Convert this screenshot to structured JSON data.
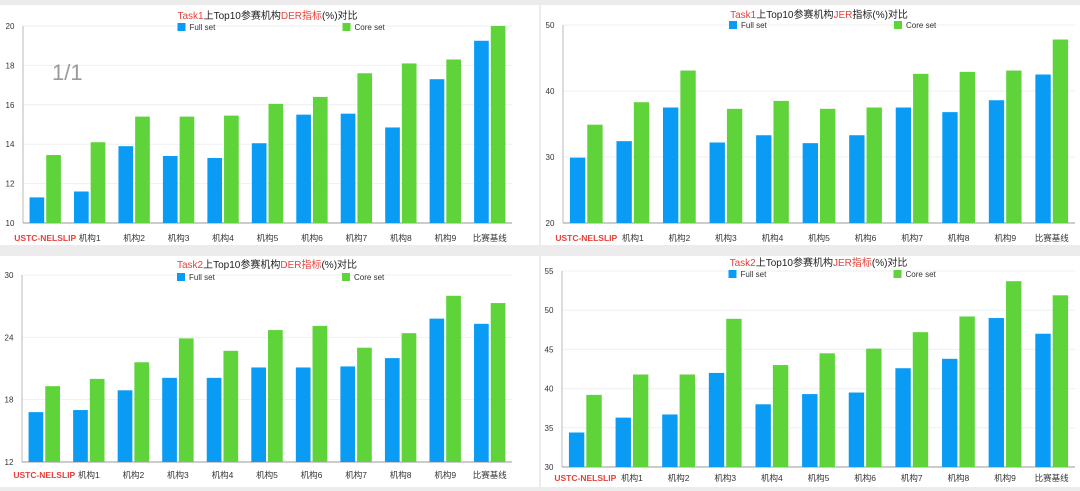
{
  "page_indicator": "1/1",
  "colors": {
    "full": "#0a9cf5",
    "core": "#5ed33a",
    "highlight": "#e8403a",
    "text": "#222222"
  },
  "chart_data": [
    {
      "type": "bar",
      "title_parts": [
        {
          "text": "Task1",
          "red": true
        },
        {
          "text": "上Top10参赛机构",
          "red": false
        },
        {
          "text": "DER指标",
          "red": true
        },
        {
          "text": "(%)对比",
          "red": false
        }
      ],
      "categories": [
        "USTC-NELSLIP",
        "机构1",
        "机构2",
        "机构3",
        "机构4",
        "机构5",
        "机构6",
        "机构7",
        "机构8",
        "机构9",
        "比赛基线"
      ],
      "highlight_category": "USTC-NELSLIP",
      "ylim": [
        10,
        20
      ],
      "yticks": [
        10,
        12,
        14,
        16,
        18,
        20
      ],
      "legend": "top-center",
      "grid": true,
      "series": [
        {
          "name": "Full set",
          "values": [
            11.3,
            11.6,
            13.9,
            13.4,
            13.3,
            14.05,
            15.5,
            15.55,
            14.85,
            17.3,
            19.25
          ]
        },
        {
          "name": "Core set",
          "values": [
            13.45,
            14.1,
            15.4,
            15.4,
            15.45,
            16.05,
            16.4,
            17.6,
            18.1,
            18.3,
            20.0
          ]
        }
      ]
    },
    {
      "type": "bar",
      "title_parts": [
        {
          "text": "Task1",
          "red": true
        },
        {
          "text": "上Top10参赛机构",
          "red": false
        },
        {
          "text": "JER",
          "red": true
        },
        {
          "text": "指标(%)对比",
          "red": false
        }
      ],
      "categories": [
        "USTC-NELSLIP",
        "机构1",
        "机构2",
        "机构3",
        "机构4",
        "机构5",
        "机构6",
        "机构7",
        "机构8",
        "机构9",
        "比赛基线"
      ],
      "highlight_category": "USTC-NELSLIP",
      "ylim": [
        20,
        50
      ],
      "yticks": [
        20,
        30,
        40,
        50
      ],
      "legend": "top-center",
      "grid": true,
      "series": [
        {
          "name": "Full set",
          "values": [
            29.9,
            32.4,
            37.5,
            32.2,
            33.3,
            32.1,
            33.3,
            37.5,
            36.8,
            38.6,
            42.5
          ]
        },
        {
          "name": "Core set",
          "values": [
            34.9,
            38.3,
            43.1,
            37.3,
            38.5,
            37.3,
            37.5,
            42.6,
            42.9,
            43.1,
            47.8
          ]
        }
      ]
    },
    {
      "type": "bar",
      "title_parts": [
        {
          "text": "Task2",
          "red": true
        },
        {
          "text": "上Top10参赛机构",
          "red": false
        },
        {
          "text": "DER指标",
          "red": true
        },
        {
          "text": "(%)对比",
          "red": false
        }
      ],
      "categories": [
        "USTC-NELSLIP",
        "机构1",
        "机构2",
        "机构3",
        "机构4",
        "机构5",
        "机构6",
        "机构7",
        "机构8",
        "机构9",
        "比赛基线"
      ],
      "highlight_category": "USTC-NELSLIP",
      "ylim": [
        12,
        30
      ],
      "yticks": [
        12,
        18,
        24,
        30
      ],
      "legend": "top-center",
      "grid": true,
      "series": [
        {
          "name": "Full set",
          "values": [
            16.8,
            17.0,
            18.9,
            20.1,
            20.1,
            21.1,
            21.1,
            21.2,
            22.0,
            25.8,
            25.3
          ]
        },
        {
          "name": "Core set",
          "values": [
            19.3,
            20.0,
            21.6,
            23.9,
            22.7,
            24.7,
            25.1,
            23.0,
            24.4,
            28.0,
            27.3
          ]
        }
      ]
    },
    {
      "type": "bar",
      "title_parts": [
        {
          "text": "Task2",
          "red": true
        },
        {
          "text": "上Top10参赛机构",
          "red": false
        },
        {
          "text": "JER指标",
          "red": true
        },
        {
          "text": "(%)对比",
          "red": false
        }
      ],
      "categories": [
        "USTC-NELSLIP",
        "机构1",
        "机构2",
        "机构3",
        "机构4",
        "机构5",
        "机构6",
        "机构7",
        "机构8",
        "机构9",
        "比赛基线"
      ],
      "highlight_category": "USTC-NELSLIP",
      "ylim": [
        30,
        55
      ],
      "yticks": [
        30,
        35,
        40,
        45,
        50,
        55
      ],
      "legend": "top-center",
      "grid": true,
      "series": [
        {
          "name": "Full set",
          "values": [
            34.4,
            36.3,
            36.7,
            42.0,
            38.0,
            39.3,
            39.5,
            42.6,
            43.8,
            49.0,
            47.0
          ]
        },
        {
          "name": "Core set",
          "values": [
            39.2,
            41.8,
            41.8,
            48.9,
            43.0,
            44.5,
            45.1,
            47.2,
            49.2,
            53.7,
            51.9
          ]
        }
      ]
    }
  ]
}
